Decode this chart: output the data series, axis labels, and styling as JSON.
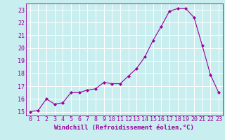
{
  "x": [
    0,
    1,
    2,
    3,
    4,
    5,
    6,
    7,
    8,
    9,
    10,
    11,
    12,
    13,
    14,
    15,
    16,
    17,
    18,
    19,
    20,
    21,
    22,
    23
  ],
  "y": [
    15.0,
    15.1,
    16.0,
    15.6,
    15.7,
    16.5,
    16.5,
    16.7,
    16.8,
    17.3,
    17.2,
    17.2,
    17.8,
    18.4,
    19.3,
    20.6,
    21.7,
    22.9,
    23.1,
    23.1,
    22.4,
    20.2,
    17.9,
    16.5
  ],
  "line_color": "#990099",
  "marker": "D",
  "marker_size": 2.0,
  "bg_color": "#c8eef0",
  "grid_color": "#ffffff",
  "xlabel": "Windchill (Refroidissement éolien,°C)",
  "xlabel_fontsize": 6.5,
  "tick_fontsize": 6.0,
  "yticks": [
    15,
    16,
    17,
    18,
    19,
    20,
    21,
    22,
    23
  ],
  "xticks": [
    0,
    1,
    2,
    3,
    4,
    5,
    6,
    7,
    8,
    9,
    10,
    11,
    12,
    13,
    14,
    15,
    16,
    17,
    18,
    19,
    20,
    21,
    22,
    23
  ],
  "xlim": [
    -0.5,
    23.5
  ],
  "ylim": [
    14.7,
    23.5
  ]
}
